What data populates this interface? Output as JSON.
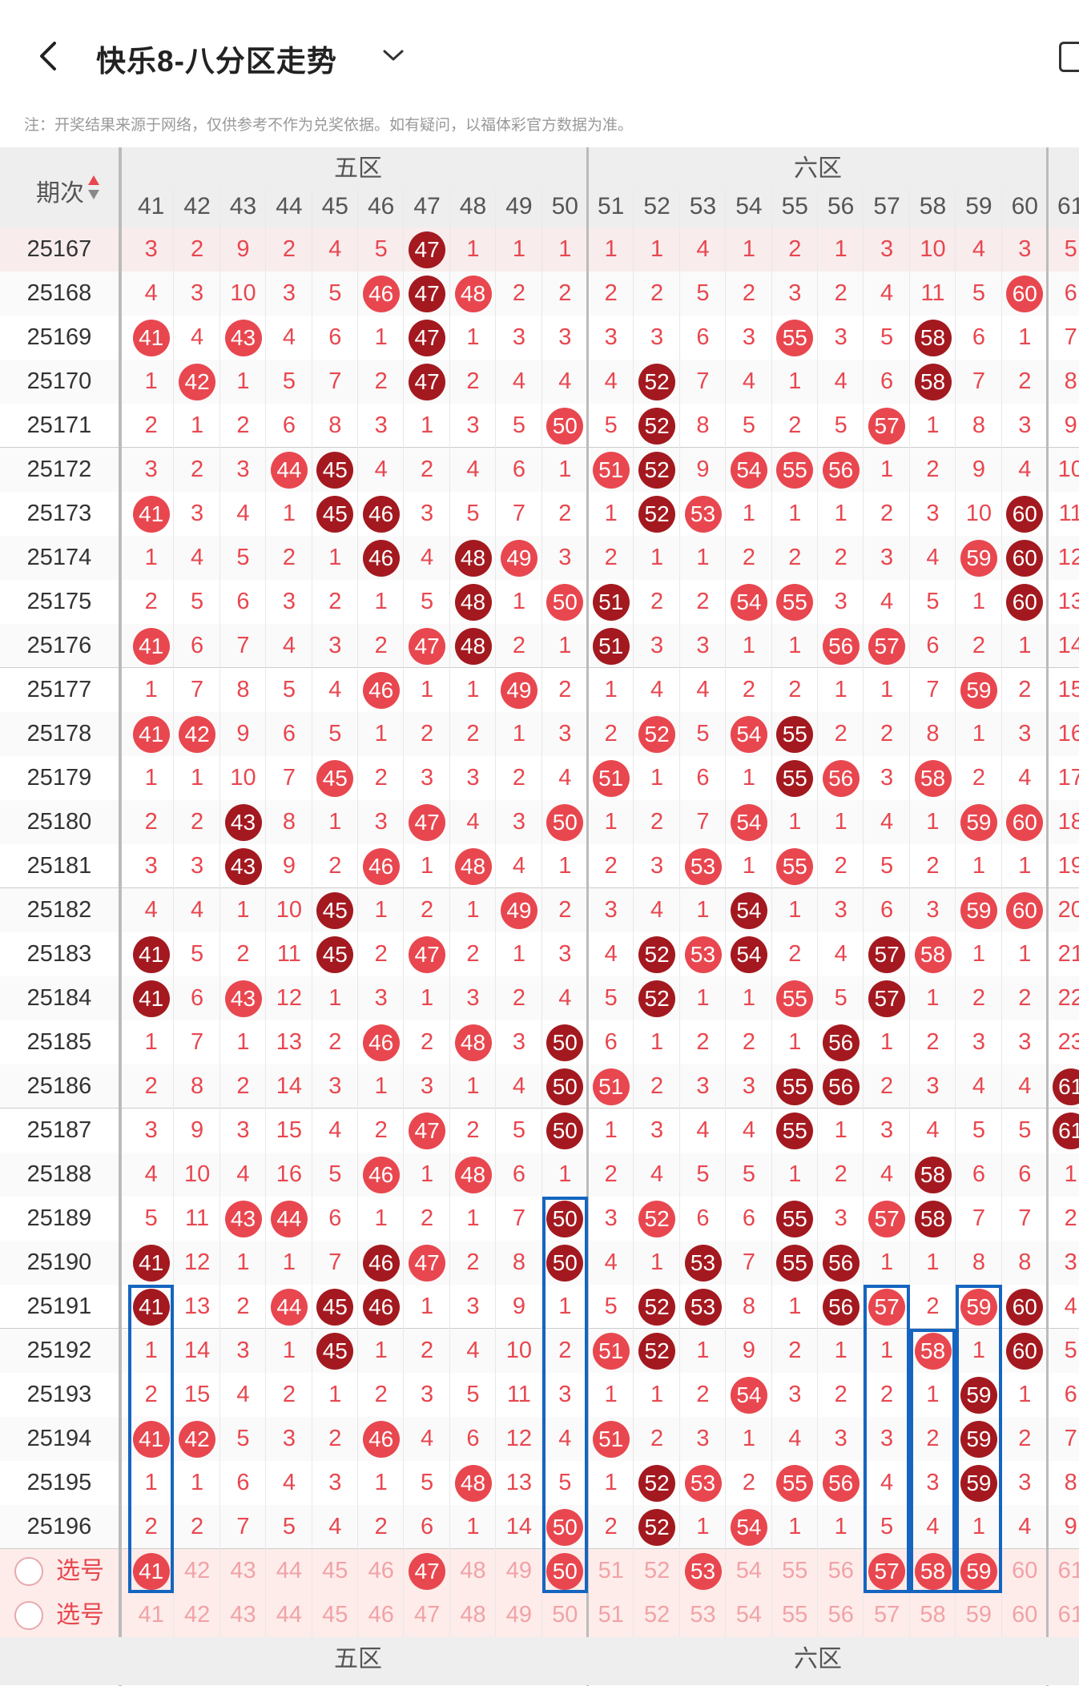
{
  "header": {
    "title": "快乐8-八分区走势",
    "note": "注：开奖结果来源于网络，仅供参考不作为兑奖依据。如有疑问，以福体彩官方数据为准。"
  },
  "table": {
    "period_header": "期次",
    "zones": [
      {
        "label": "五区"
      },
      {
        "label": "六区"
      }
    ],
    "columns": [
      "41",
      "42",
      "43",
      "44",
      "45",
      "46",
      "47",
      "48",
      "49",
      "50",
      "51",
      "52",
      "53",
      "54",
      "55",
      "56",
      "57",
      "58",
      "59",
      "60",
      "61"
    ],
    "rows": [
      {
        "period": "25167",
        "cells": [
          "3",
          "2",
          "9",
          "2",
          "4",
          "5",
          "47",
          "1",
          "1",
          "1",
          "1",
          "1",
          "4",
          "1",
          "2",
          "1",
          "3",
          "10",
          "4",
          "3",
          "5"
        ]
      },
      {
        "period": "25168",
        "cells": [
          "4",
          "3",
          "10",
          "3",
          "5",
          "46",
          "47",
          "48",
          "2",
          "2",
          "2",
          "2",
          "5",
          "2",
          "3",
          "2",
          "4",
          "11",
          "5",
          "60",
          "6"
        ]
      },
      {
        "period": "25169",
        "cells": [
          "41",
          "4",
          "43",
          "4",
          "6",
          "1",
          "47",
          "1",
          "3",
          "3",
          "3",
          "3",
          "6",
          "3",
          "55",
          "3",
          "5",
          "58",
          "6",
          "1",
          "7"
        ]
      },
      {
        "period": "25170",
        "cells": [
          "1",
          "42",
          "1",
          "5",
          "7",
          "2",
          "47",
          "2",
          "4",
          "4",
          "4",
          "52",
          "7",
          "4",
          "1",
          "4",
          "6",
          "58",
          "7",
          "2",
          "8"
        ]
      },
      {
        "period": "25171",
        "cells": [
          "2",
          "1",
          "2",
          "6",
          "8",
          "3",
          "1",
          "3",
          "5",
          "50",
          "5",
          "52",
          "8",
          "5",
          "2",
          "5",
          "57",
          "1",
          "8",
          "3",
          "9"
        ]
      },
      {
        "period": "25172",
        "cells": [
          "3",
          "2",
          "3",
          "44",
          "45",
          "4",
          "2",
          "4",
          "6",
          "1",
          "51",
          "52",
          "9",
          "54",
          "55",
          "56",
          "1",
          "2",
          "9",
          "4",
          "10"
        ]
      },
      {
        "period": "25173",
        "cells": [
          "41",
          "3",
          "4",
          "1",
          "45",
          "46",
          "3",
          "5",
          "7",
          "2",
          "1",
          "52",
          "53",
          "1",
          "1",
          "1",
          "2",
          "3",
          "10",
          "60",
          "11"
        ]
      },
      {
        "period": "25174",
        "cells": [
          "1",
          "4",
          "5",
          "2",
          "1",
          "46",
          "4",
          "48",
          "49",
          "3",
          "2",
          "1",
          "1",
          "2",
          "2",
          "2",
          "3",
          "4",
          "59",
          "60",
          "12"
        ]
      },
      {
        "period": "25175",
        "cells": [
          "2",
          "5",
          "6",
          "3",
          "2",
          "1",
          "5",
          "48",
          "1",
          "50",
          "51",
          "2",
          "2",
          "54",
          "55",
          "3",
          "4",
          "5",
          "1",
          "60",
          "13"
        ]
      },
      {
        "period": "25176",
        "cells": [
          "41",
          "6",
          "7",
          "4",
          "3",
          "2",
          "47",
          "48",
          "2",
          "1",
          "51",
          "3",
          "3",
          "1",
          "1",
          "56",
          "57",
          "6",
          "2",
          "1",
          "14"
        ]
      },
      {
        "period": "25177",
        "cells": [
          "1",
          "7",
          "8",
          "5",
          "4",
          "46",
          "1",
          "1",
          "49",
          "2",
          "1",
          "4",
          "4",
          "2",
          "2",
          "1",
          "1",
          "7",
          "59",
          "2",
          "15"
        ]
      },
      {
        "period": "25178",
        "cells": [
          "41",
          "42",
          "9",
          "6",
          "5",
          "1",
          "2",
          "2",
          "1",
          "3",
          "2",
          "52",
          "5",
          "54",
          "55",
          "2",
          "2",
          "8",
          "1",
          "3",
          "16"
        ]
      },
      {
        "period": "25179",
        "cells": [
          "1",
          "1",
          "10",
          "7",
          "45",
          "2",
          "3",
          "3",
          "2",
          "4",
          "51",
          "1",
          "6",
          "1",
          "55",
          "56",
          "3",
          "58",
          "2",
          "4",
          "17"
        ]
      },
      {
        "period": "25180",
        "cells": [
          "2",
          "2",
          "43",
          "8",
          "1",
          "3",
          "47",
          "4",
          "3",
          "50",
          "1",
          "2",
          "7",
          "54",
          "1",
          "1",
          "4",
          "1",
          "59",
          "60",
          "18"
        ]
      },
      {
        "period": "25181",
        "cells": [
          "3",
          "3",
          "43",
          "9",
          "2",
          "46",
          "1",
          "48",
          "4",
          "1",
          "2",
          "3",
          "53",
          "1",
          "55",
          "2",
          "5",
          "2",
          "1",
          "1",
          "19"
        ]
      },
      {
        "period": "25182",
        "cells": [
          "4",
          "4",
          "1",
          "10",
          "45",
          "1",
          "2",
          "1",
          "49",
          "2",
          "3",
          "4",
          "1",
          "54",
          "1",
          "3",
          "6",
          "3",
          "59",
          "60",
          "20"
        ]
      },
      {
        "period": "25183",
        "cells": [
          "41",
          "5",
          "2",
          "11",
          "45",
          "2",
          "47",
          "2",
          "1",
          "3",
          "4",
          "52",
          "53",
          "54",
          "2",
          "4",
          "57",
          "58",
          "1",
          "1",
          "21"
        ]
      },
      {
        "period": "25184",
        "cells": [
          "41",
          "6",
          "43",
          "12",
          "1",
          "3",
          "1",
          "3",
          "2",
          "4",
          "5",
          "52",
          "1",
          "1",
          "55",
          "5",
          "57",
          "1",
          "2",
          "2",
          "22"
        ]
      },
      {
        "period": "25185",
        "cells": [
          "1",
          "7",
          "1",
          "13",
          "2",
          "46",
          "2",
          "48",
          "3",
          "50",
          "6",
          "1",
          "2",
          "2",
          "1",
          "56",
          "1",
          "2",
          "3",
          "3",
          "23"
        ]
      },
      {
        "period": "25186",
        "cells": [
          "2",
          "8",
          "2",
          "14",
          "3",
          "1",
          "3",
          "1",
          "4",
          "50",
          "51",
          "2",
          "3",
          "3",
          "55",
          "56",
          "2",
          "3",
          "4",
          "4",
          "61"
        ]
      },
      {
        "period": "25187",
        "cells": [
          "3",
          "9",
          "3",
          "15",
          "4",
          "2",
          "47",
          "2",
          "5",
          "50",
          "1",
          "3",
          "4",
          "4",
          "55",
          "1",
          "3",
          "4",
          "5",
          "5",
          "61"
        ]
      },
      {
        "period": "25188",
        "cells": [
          "4",
          "10",
          "4",
          "16",
          "5",
          "46",
          "1",
          "48",
          "6",
          "1",
          "2",
          "4",
          "5",
          "5",
          "1",
          "2",
          "4",
          "58",
          "6",
          "6",
          "1"
        ]
      },
      {
        "period": "25189",
        "cells": [
          "5",
          "11",
          "43",
          "44",
          "6",
          "1",
          "2",
          "1",
          "7",
          "50",
          "3",
          "52",
          "6",
          "6",
          "55",
          "3",
          "57",
          "58",
          "7",
          "7",
          "2"
        ]
      },
      {
        "period": "25190",
        "cells": [
          "41",
          "12",
          "1",
          "1",
          "7",
          "46",
          "47",
          "2",
          "8",
          "50",
          "4",
          "1",
          "53",
          "7",
          "55",
          "56",
          "1",
          "1",
          "8",
          "8",
          "3"
        ]
      },
      {
        "period": "25191",
        "cells": [
          "41",
          "13",
          "2",
          "44",
          "45",
          "46",
          "1",
          "3",
          "9",
          "1",
          "5",
          "52",
          "53",
          "8",
          "1",
          "56",
          "57",
          "2",
          "59",
          "60",
          "4"
        ]
      },
      {
        "period": "25192",
        "cells": [
          "1",
          "14",
          "3",
          "1",
          "45",
          "1",
          "2",
          "4",
          "10",
          "2",
          "51",
          "52",
          "1",
          "9",
          "2",
          "1",
          "1",
          "58",
          "1",
          "60",
          "5"
        ]
      },
      {
        "period": "25193",
        "cells": [
          "2",
          "15",
          "4",
          "2",
          "1",
          "2",
          "3",
          "5",
          "11",
          "3",
          "1",
          "1",
          "2",
          "54",
          "3",
          "2",
          "2",
          "1",
          "59",
          "1",
          "6"
        ]
      },
      {
        "period": "25194",
        "cells": [
          "41",
          "42",
          "5",
          "3",
          "2",
          "46",
          "4",
          "6",
          "12",
          "4",
          "51",
          "2",
          "3",
          "1",
          "4",
          "3",
          "3",
          "2",
          "59",
          "2",
          "7"
        ]
      },
      {
        "period": "25195",
        "cells": [
          "1",
          "1",
          "6",
          "4",
          "3",
          "1",
          "5",
          "48",
          "13",
          "5",
          "1",
          "52",
          "53",
          "2",
          "55",
          "56",
          "4",
          "3",
          "59",
          "3",
          "8"
        ]
      },
      {
        "period": "25196",
        "cells": [
          "2",
          "2",
          "7",
          "5",
          "4",
          "2",
          "6",
          "1",
          "14",
          "50",
          "2",
          "52",
          "1",
          "54",
          "1",
          "1",
          "5",
          "4",
          "1",
          "4",
          "9"
        ]
      }
    ],
    "pick_label": "选号"
  },
  "colors": {
    "hit": "#e8474f",
    "streak": "#a3191f",
    "line": "#1565c0"
  }
}
